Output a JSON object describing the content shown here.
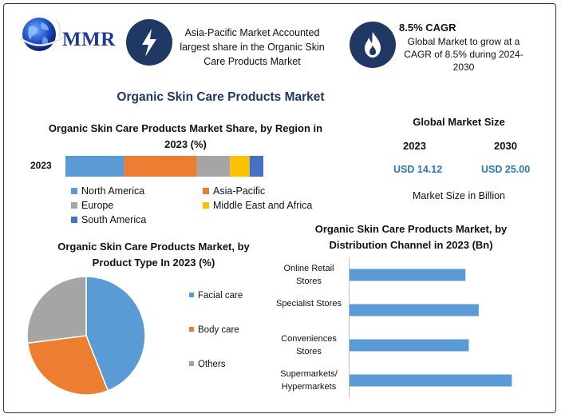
{
  "header": {
    "logo_text": "MMR",
    "info1": {
      "icon": "lightning-icon",
      "text": "Asia-Pacific Market Accounted largest share in the Organic Skin Care Products Market"
    },
    "info2": {
      "icon": "flame-icon",
      "title": "8.5% CAGR",
      "text": "Global Market to grow at a CAGR of 8.5% during 2024-2030"
    }
  },
  "main_title": "Organic Skin Care Products Market",
  "market_size": {
    "title": "Global Market Size",
    "year1": "2023",
    "year2": "2030",
    "value1": "USD 14.12",
    "value2": "USD 25.00",
    "footer": "Market Size in Billion"
  },
  "colors": {
    "blue": "#5b9bd5",
    "orange": "#ed7d31",
    "gray": "#a5a5a5",
    "yellow": "#ffc000",
    "darkblue": "#4472c4",
    "navy": "#1f3864"
  },
  "chart_data": [
    {
      "type": "bar",
      "orientation": "horizontal-stacked",
      "title": "Organic Skin Care Products Market Share, by Region in 2023 (%)",
      "categories": [
        "2023"
      ],
      "series": [
        {
          "name": "North America",
          "values": [
            30
          ],
          "color": "#5b9bd5"
        },
        {
          "name": "Asia-Pacific",
          "values": [
            37
          ],
          "color": "#ed7d31"
        },
        {
          "name": "Europe",
          "values": [
            17
          ],
          "color": "#a5a5a5"
        },
        {
          "name": "Middle East and Africa",
          "values": [
            10
          ],
          "color": "#ffc000"
        },
        {
          "name": "South America",
          "values": [
            7
          ],
          "color": "#4472c4"
        }
      ],
      "legend": "bottom"
    },
    {
      "type": "pie",
      "title": "Organic Skin Care Products Market, by Product Type In 2023 (%)",
      "labels": [
        "Facial care",
        "Body care",
        "Others"
      ],
      "values": [
        44,
        29,
        27
      ],
      "colors": [
        "#5b9bd5",
        "#ed7d31",
        "#a5a5a5"
      ],
      "legend": "right"
    },
    {
      "type": "bar",
      "orientation": "horizontal",
      "title": "Organic Skin Care Products Market, by Distribution Channel in 2023 (Bn)",
      "categories": [
        "Online Retail Stores",
        "Specialist Stores",
        "Conveniences Stores",
        "Supermarkets/ Hypermarkets"
      ],
      "values": [
        3.5,
        3.9,
        3.6,
        4.9
      ],
      "xlim": [
        0,
        5.3
      ],
      "color": "#5b9bd5"
    }
  ]
}
